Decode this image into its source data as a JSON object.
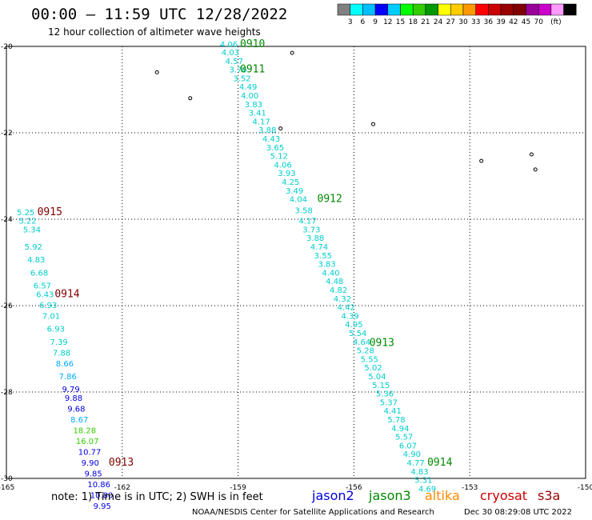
{
  "header": {
    "title": "00:00 — 11:59 UTC 12/28/2022",
    "subtitle": "12 hour collection of altimeter wave heights"
  },
  "color_scale": {
    "colors": [
      "#808080",
      "#00ffff",
      "#00bfff",
      "#0000ff",
      "#00ccff",
      "#00ff00",
      "#33cc00",
      "#009900",
      "#ffff00",
      "#ffcc00",
      "#ff9900",
      "#ff0000",
      "#cc0000",
      "#990000",
      "#800000",
      "#990099",
      "#cc00cc",
      "#ff99ff",
      "#000000"
    ],
    "labels": [
      "3",
      "6",
      "9",
      "12",
      "15",
      "18",
      "21",
      "24",
      "27",
      "30",
      "33",
      "36",
      "39",
      "42",
      "45",
      "70",
      "(ft)"
    ]
  },
  "footer": {
    "note": "note: 1) Time is in UTC; 2) SWH is in feet",
    "legend": [
      {
        "name": "jason2",
        "color": "#0000dd"
      },
      {
        "name": "jason3",
        "color": "#008800"
      },
      {
        "name": "altika",
        "color": "#ff8800"
      },
      {
        "name": "cryosat",
        "color": "#cc0000"
      },
      {
        "name": "s3a",
        "color": "#990000"
      }
    ],
    "credit": "NOAA/NESDIS Center for Satellite Applications and Research",
    "timestamp": "Dec 30 08:29:08 UTC 2022"
  },
  "chart_data": {
    "type": "scatter",
    "title": "12 hour collection of altimeter wave heights",
    "xlabel": "",
    "ylabel": "",
    "xlim": [
      -165,
      -150
    ],
    "ylim": [
      -30,
      -20
    ],
    "grid": true,
    "x_ticks": [
      "-165",
      "-162",
      "-159",
      "-156",
      "-153",
      "-150"
    ],
    "y_ticks": [
      "-20",
      "-22",
      "-24",
      "-26",
      "-28",
      "-30"
    ],
    "islands": [
      {
        "lon": -161.1,
        "lat": -20.6
      },
      {
        "lon": -160.24,
        "lat": -21.2
      },
      {
        "lon": -157.6,
        "lat": -20.15
      },
      {
        "lon": -157.9,
        "lat": -21.9
      },
      {
        "lon": -155.5,
        "lat": -21.8
      },
      {
        "lon": -152.7,
        "lat": -22.65
      },
      {
        "lon": -151.4,
        "lat": -22.5
      },
      {
        "lon": -151.3,
        "lat": -22.85
      }
    ],
    "series": [
      {
        "track": "center",
        "points": [
          {
            "lon": -159.47,
            "lat": -19.94,
            "v": "4.06",
            "c": "#00cccc"
          },
          {
            "lon": -159.43,
            "lat": -20.13,
            "v": "4.03",
            "c": "#00cccc"
          },
          {
            "lon": -159.33,
            "lat": -20.33,
            "v": "4.57",
            "c": "#00cccc"
          },
          {
            "lon": -159.23,
            "lat": -20.53,
            "v": "3.76",
            "c": "#00cccc"
          },
          {
            "lon": -159.13,
            "lat": -20.73,
            "v": "3.52",
            "c": "#00cccc"
          },
          {
            "lon": -158.97,
            "lat": -20.93,
            "v": "4.49",
            "c": "#00cccc"
          },
          {
            "lon": -158.93,
            "lat": -21.13,
            "v": "4.00",
            "c": "#00cccc"
          },
          {
            "lon": -158.83,
            "lat": -21.33,
            "v": "3.83",
            "c": "#00cccc"
          },
          {
            "lon": -158.73,
            "lat": -21.53,
            "v": "3.41",
            "c": "#00cccc"
          },
          {
            "lon": -158.63,
            "lat": -21.73,
            "v": "4.17",
            "c": "#00cccc"
          },
          {
            "lon": -158.47,
            "lat": -21.93,
            "v": "3.88",
            "c": "#00cccc"
          },
          {
            "lon": -158.37,
            "lat": -22.13,
            "v": "4.43",
            "c": "#00cccc"
          },
          {
            "lon": -158.27,
            "lat": -22.33,
            "v": "3.65",
            "c": "#00cccc"
          },
          {
            "lon": -158.17,
            "lat": -22.53,
            "v": "5.12",
            "c": "#00cccc"
          },
          {
            "lon": -158.07,
            "lat": -22.73,
            "v": "4.06",
            "c": "#00cccc"
          },
          {
            "lon": -157.97,
            "lat": -22.93,
            "v": "3.93",
            "c": "#00cccc"
          },
          {
            "lon": -157.87,
            "lat": -23.13,
            "v": "4.25",
            "c": "#00cccc"
          },
          {
            "lon": -157.77,
            "lat": -23.33,
            "v": "3.49",
            "c": "#00cccc"
          },
          {
            "lon": -157.67,
            "lat": -23.53,
            "v": "4.04",
            "c": "#00cccc"
          },
          {
            "lon": -157.53,
            "lat": -23.79,
            "v": "3.58",
            "c": "#00cccc"
          },
          {
            "lon": -157.43,
            "lat": -24.03,
            "v": "4.17",
            "c": "#00cccc"
          },
          {
            "lon": -157.33,
            "lat": -24.23,
            "v": "3.73",
            "c": "#00cccc"
          },
          {
            "lon": -157.23,
            "lat": -24.43,
            "v": "3.88",
            "c": "#00cccc"
          },
          {
            "lon": -157.13,
            "lat": -24.63,
            "v": "4.74",
            "c": "#00cccc"
          },
          {
            "lon": -157.03,
            "lat": -24.83,
            "v": "3.55",
            "c": "#00cccc"
          },
          {
            "lon": -156.93,
            "lat": -25.03,
            "v": "3.83",
            "c": "#00cccc"
          },
          {
            "lon": -156.83,
            "lat": -25.23,
            "v": "4.40",
            "c": "#00cccc"
          },
          {
            "lon": -156.73,
            "lat": -25.43,
            "v": "4.48",
            "c": "#00cccc"
          },
          {
            "lon": -156.63,
            "lat": -25.63,
            "v": "4.82",
            "c": "#00cccc"
          },
          {
            "lon": -156.53,
            "lat": -25.83,
            "v": "4.32",
            "c": "#00cccc"
          },
          {
            "lon": -156.43,
            "lat": -26.03,
            "v": "4.42",
            "c": "#00cccc"
          },
          {
            "lon": -156.33,
            "lat": -26.23,
            "v": "4.39",
            "c": "#00cccc"
          },
          {
            "lon": -156.23,
            "lat": -26.43,
            "v": "4.95",
            "c": "#00cccc"
          },
          {
            "lon": -156.13,
            "lat": -26.63,
            "v": "5.54",
            "c": "#00cccc"
          },
          {
            "lon": -156.03,
            "lat": -26.83,
            "v": "4.64",
            "c": "#00cccc"
          },
          {
            "lon": -155.93,
            "lat": -27.03,
            "v": "5.28",
            "c": "#00cccc"
          },
          {
            "lon": -155.83,
            "lat": -27.23,
            "v": "5.55",
            "c": "#00cccc"
          },
          {
            "lon": -155.73,
            "lat": -27.43,
            "v": "5.02",
            "c": "#00cccc"
          },
          {
            "lon": -155.63,
            "lat": -27.63,
            "v": "5.04",
            "c": "#00cccc"
          },
          {
            "lon": -155.53,
            "lat": -27.83,
            "v": "5.15",
            "c": "#00cccc"
          },
          {
            "lon": -155.43,
            "lat": -28.03,
            "v": "5.36",
            "c": "#00cccc"
          },
          {
            "lon": -155.33,
            "lat": -28.23,
            "v": "5.37",
            "c": "#00cccc"
          },
          {
            "lon": -155.23,
            "lat": -28.43,
            "v": "4.41",
            "c": "#00cccc"
          },
          {
            "lon": -155.13,
            "lat": -28.63,
            "v": "5.78",
            "c": "#00cccc"
          },
          {
            "lon": -155.03,
            "lat": -28.83,
            "v": "4.94",
            "c": "#00cccc"
          },
          {
            "lon": -154.93,
            "lat": -29.03,
            "v": "5.57",
            "c": "#00cccc"
          },
          {
            "lon": -154.83,
            "lat": -29.23,
            "v": "6.07",
            "c": "#00cccc"
          },
          {
            "lon": -154.73,
            "lat": -29.43,
            "v": "4.90",
            "c": "#00cccc"
          },
          {
            "lon": -154.63,
            "lat": -29.63,
            "v": "4.77",
            "c": "#00cccc"
          },
          {
            "lon": -154.53,
            "lat": -29.83,
            "v": "4.83",
            "c": "#00cccc"
          },
          {
            "lon": -154.43,
            "lat": -30.03,
            "v": "5.31",
            "c": "#00cccc"
          },
          {
            "lon": -154.33,
            "lat": -30.23,
            "v": "4.69",
            "c": "#00cccc"
          }
        ],
        "times": [
          {
            "lon": -158.95,
            "lat": -19.94,
            "t": "0910",
            "c": "#008800"
          },
          {
            "lon": -158.95,
            "lat": -20.53,
            "t": "0911",
            "c": "#008800"
          },
          {
            "lon": -156.95,
            "lat": -23.53,
            "t": "0912",
            "c": "#008800"
          },
          {
            "lon": -155.6,
            "lat": -26.86,
            "t": "0913",
            "c": "#008800"
          },
          {
            "lon": -154.1,
            "lat": -29.63,
            "t": "0914",
            "c": "#008800"
          }
        ]
      },
      {
        "track": "west",
        "points": [
          {
            "lon": -164.73,
            "lat": -23.83,
            "v": "5.25",
            "c": "#00cccc"
          },
          {
            "lon": -164.68,
            "lat": -24.03,
            "v": "5.22",
            "c": "#00cccc"
          },
          {
            "lon": -164.57,
            "lat": -24.23,
            "v": "5.34",
            "c": "#00cccc"
          },
          {
            "lon": -164.53,
            "lat": -24.63,
            "v": "5.92",
            "c": "#00cccc"
          },
          {
            "lon": -164.46,
            "lat": -24.93,
            "v": "4.83",
            "c": "#00cccc"
          },
          {
            "lon": -164.38,
            "lat": -25.23,
            "v": "6.68",
            "c": "#00cccc"
          },
          {
            "lon": -164.3,
            "lat": -25.53,
            "v": "6.57",
            "c": "#00cccc"
          },
          {
            "lon": -164.23,
            "lat": -25.73,
            "v": "6.43",
            "c": "#00cccc"
          },
          {
            "lon": -164.15,
            "lat": -25.98,
            "v": "6.93",
            "c": "#00cccc"
          },
          {
            "lon": -164.07,
            "lat": -26.23,
            "v": "7.01",
            "c": "#00cccc"
          },
          {
            "lon": -163.95,
            "lat": -26.53,
            "v": "6.93",
            "c": "#00cccc"
          },
          {
            "lon": -163.87,
            "lat": -26.83,
            "v": "7.39",
            "c": "#00cccc"
          },
          {
            "lon": -163.8,
            "lat": -27.08,
            "v": "7.88",
            "c": "#00cccc"
          },
          {
            "lon": -163.72,
            "lat": -27.33,
            "v": "8.66",
            "c": "#00aaff"
          },
          {
            "lon": -163.64,
            "lat": -27.63,
            "v": "7.86",
            "c": "#00aaff"
          },
          {
            "lon": -163.56,
            "lat": -27.93,
            "v": "9.79",
            "c": "#0000dd"
          },
          {
            "lon": -163.49,
            "lat": -28.13,
            "v": "9.88",
            "c": "#0000dd"
          },
          {
            "lon": -163.42,
            "lat": -28.38,
            "v": "9.68",
            "c": "#0000dd"
          },
          {
            "lon": -163.34,
            "lat": -28.63,
            "v": "8.67",
            "c": "#00aaff"
          },
          {
            "lon": -163.27,
            "lat": -28.88,
            "v": "18.28",
            "c": "#33cc00"
          },
          {
            "lon": -163.2,
            "lat": -29.13,
            "v": "16.07",
            "c": "#33cc00"
          },
          {
            "lon": -163.14,
            "lat": -29.38,
            "v": "10.77",
            "c": "#0000dd"
          },
          {
            "lon": -163.06,
            "lat": -29.63,
            "v": "9.90",
            "c": "#0000dd"
          },
          {
            "lon": -162.98,
            "lat": -29.88,
            "v": "9.85",
            "c": "#0000dd"
          },
          {
            "lon": -162.9,
            "lat": -30.13,
            "v": "10.86",
            "c": "#0000dd"
          },
          {
            "lon": -162.83,
            "lat": -30.38,
            "v": "10.80",
            "c": "#0000dd"
          },
          {
            "lon": -162.75,
            "lat": -30.63,
            "v": "9.95",
            "c": "#0000dd"
          }
        ],
        "times": [
          {
            "lon": -164.2,
            "lat": -23.83,
            "t": "0915",
            "c": "#800000"
          },
          {
            "lon": -163.75,
            "lat": -25.73,
            "t": "0914",
            "c": "#800000"
          },
          {
            "lon": -162.35,
            "lat": -29.63,
            "t": "0913",
            "c": "#800000"
          }
        ]
      }
    ]
  }
}
